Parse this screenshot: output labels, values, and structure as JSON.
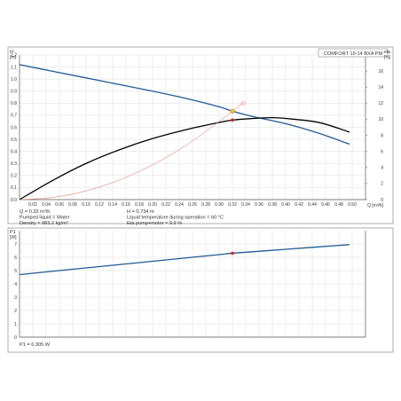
{
  "chart_data": [
    {
      "type": "line",
      "title": "COMFORT 15-14 BXA PM",
      "ylabel": "H",
      "yunit": "[m]",
      "y2label": "eta",
      "y2unit": "[%]",
      "xunit": "Q [m³/h]",
      "xlim": [
        0,
        0.52
      ],
      "ylim": [
        0,
        1.2
      ],
      "y2lim": [
        0,
        18
      ],
      "x_ticks": [
        "0.02",
        "0.04",
        "0.06",
        "0.08",
        "0.10",
        "0.12",
        "0.14",
        "0.16",
        "0.18",
        "0.20",
        "0.22",
        "0.24",
        "0.26",
        "0.28",
        "0.30",
        "0.32",
        "0.34",
        "0.36",
        "0.38",
        "0.40",
        "0.42",
        "0.44",
        "0.46",
        "0.48",
        "0.50"
      ],
      "y_ticks": [
        "0.0",
        "0.1",
        "0.2",
        "0.3",
        "0.4",
        "0.5",
        "0.6",
        "0.7",
        "0.8",
        "0.9",
        "1.0",
        "1.1",
        "1.2"
      ],
      "y2_ticks": [
        "0",
        "2",
        "4",
        "6",
        "8",
        "10",
        "12",
        "14",
        "16"
      ],
      "grid": true,
      "series": [
        {
          "color": "#1f5a96",
          "axis": "y",
          "x": [
            0,
            0.05,
            0.1,
            0.15,
            0.2,
            0.25,
            0.3,
            0.32,
            0.35,
            0.4,
            0.45,
            0.496
          ],
          "y": [
            1.12,
            1.065,
            1.01,
            0.955,
            0.9,
            0.84,
            0.77,
            0.734,
            0.69,
            0.63,
            0.55,
            0.46
          ]
        },
        {
          "color": "#000000",
          "axis": "y2",
          "x": [
            0,
            0.05,
            0.1,
            0.15,
            0.2,
            0.25,
            0.3,
            0.32,
            0.35,
            0.38,
            0.4,
            0.45,
            0.496
          ],
          "y": [
            0,
            2.4,
            4.5,
            6.2,
            7.6,
            8.7,
            9.6,
            9.9,
            10.1,
            10.2,
            10.1,
            9.6,
            8.4
          ]
        },
        {
          "color": "#e8897e",
          "axis": "y",
          "x": [
            0,
            0.05,
            0.1,
            0.15,
            0.2,
            0.25,
            0.3,
            0.32,
            0.335
          ],
          "y": [
            0,
            0.018,
            0.072,
            0.162,
            0.288,
            0.45,
            0.648,
            0.734,
            0.8
          ]
        }
      ],
      "operating_point": {
        "x": 0.32,
        "H": 0.734,
        "eta": 9.9
      },
      "info": {
        "q": "Q = 0.32 m³/h",
        "liquid": "Pumped liquid = Water",
        "density": "Density = 983.2 kg/m³",
        "h": "H = 0.734 m",
        "temp": "Liquid temperature during operation = 60 °C",
        "eta": "Eta pump+motor = 9.9 %"
      }
    },
    {
      "type": "line",
      "ylabel": "P1",
      "yunit": "[W]",
      "xlim": [
        0,
        0.52
      ],
      "ylim": [
        0,
        8
      ],
      "y_ticks": [
        "0",
        "1",
        "2",
        "3",
        "4",
        "5",
        "6",
        "7"
      ],
      "grid": true,
      "series": [
        {
          "color": "#1f5a96",
          "x": [
            0,
            0.1,
            0.2,
            0.3,
            0.32,
            0.4,
            0.496
          ],
          "y": [
            4.7,
            5.2,
            5.7,
            6.2,
            6.305,
            6.6,
            6.95
          ]
        }
      ],
      "operating_point": {
        "x": 0.32,
        "y": 6.305
      },
      "footer": "P1 = 6.305 W"
    }
  ]
}
